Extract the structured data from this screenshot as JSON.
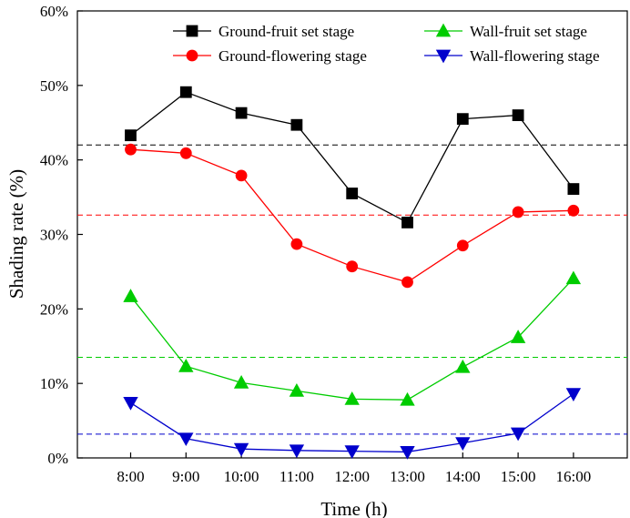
{
  "chart_data": {
    "type": "line",
    "xlabel": "Time (h)",
    "ylabel": "Shading rate (%)",
    "ylim": [
      0,
      60
    ],
    "ytick_step": 10,
    "ytick_suffix": "%",
    "categories": [
      "8:00",
      "9:00",
      "10:00",
      "11:00",
      "12:00",
      "13:00",
      "14:00",
      "15:00",
      "16:00"
    ],
    "series": [
      {
        "name": "Ground-fruit set stage",
        "color": "#000000",
        "marker": "square",
        "values": [
          43.3,
          49.1,
          46.3,
          44.7,
          35.5,
          31.6,
          45.5,
          46.0,
          36.1
        ],
        "mean": 42.0
      },
      {
        "name": "Ground-flowering stage",
        "color": "#ff0000",
        "marker": "circle",
        "values": [
          41.4,
          40.9,
          37.9,
          28.7,
          25.7,
          23.6,
          28.5,
          33.0,
          33.2
        ],
        "mean": 32.6
      },
      {
        "name": "Wall-fruit set stage",
        "color": "#00cc00",
        "marker": "triangle-up",
        "values": [
          21.7,
          12.3,
          10.1,
          9.0,
          7.9,
          7.8,
          12.2,
          16.2,
          24.1
        ],
        "mean": 13.5
      },
      {
        "name": "Wall-flowering stage",
        "color": "#0000cc",
        "marker": "triangle-down",
        "values": [
          7.4,
          2.6,
          1.2,
          1.0,
          0.9,
          0.8,
          2.0,
          3.3,
          8.6
        ],
        "mean": 3.2
      }
    ],
    "legend": {
      "placement": "top, two columns",
      "order": [
        "Ground-fruit set stage",
        "Wall-fruit set stage",
        "Ground-flowering stage",
        "Wall-flowering stage"
      ]
    },
    "grid": false
  }
}
